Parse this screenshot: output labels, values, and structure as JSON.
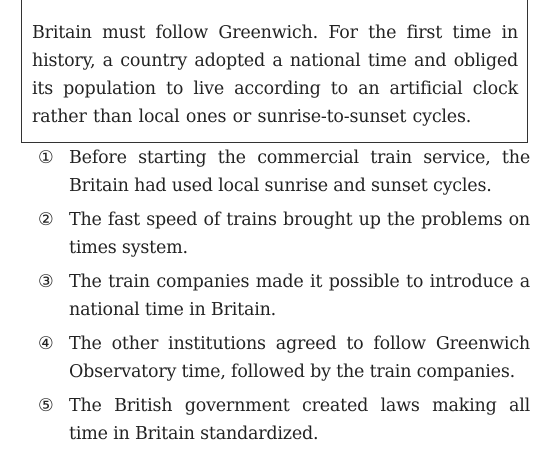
{
  "passage": {
    "text": "Britain must follow Greenwich. For the first time in history, a country adopted a national time and obliged its population to live according to an artificial clock rather than local ones or sunrise-to-sunset cycles."
  },
  "options": [
    {
      "number": "①",
      "text": "Before starting the commercial train service, the Britain had used local sunrise and sunset cycles."
    },
    {
      "number": "②",
      "text": "The fast speed of trains brought up the problems on times system."
    },
    {
      "number": "③",
      "text": "The train companies made it possible to introduce a national time in Britain."
    },
    {
      "number": "④",
      "text": "The other institutions agreed to follow Greenwich Observatory time, followed by the train companies."
    },
    {
      "number": "⑤",
      "text": "The British government created laws making all time in Britain standardized."
    }
  ]
}
